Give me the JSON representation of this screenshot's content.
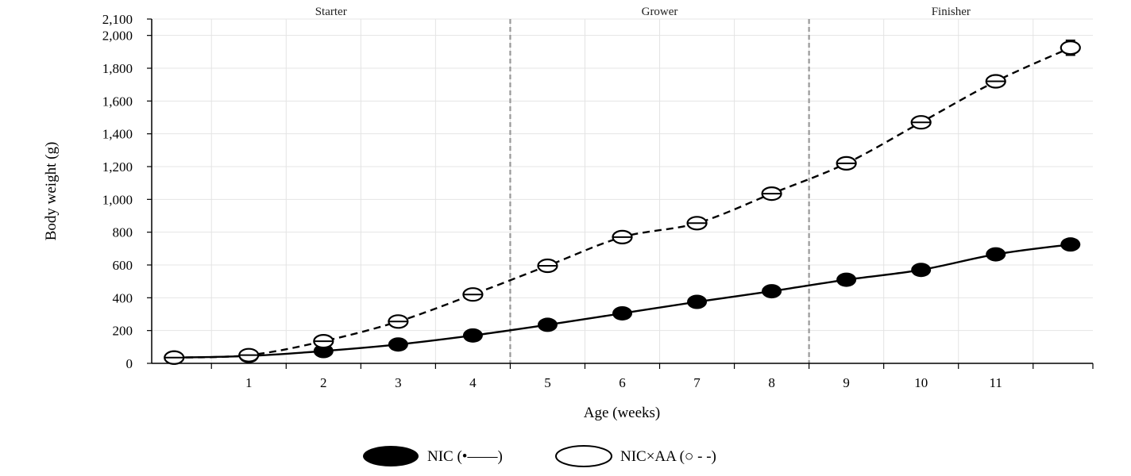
{
  "chart_data": {
    "type": "line",
    "xlabel": "Age (weeks)",
    "ylabel": "Body weight (g)",
    "xlim": [
      -0.3,
      12.3
    ],
    "ylim": [
      0,
      2100
    ],
    "x_ticks": [
      1,
      2,
      3,
      4,
      5,
      6,
      7,
      8,
      9,
      10,
      11
    ],
    "y_ticks": [
      0,
      200,
      400,
      600,
      800,
      1000,
      1200,
      1400,
      1600,
      1800,
      2000,
      2100
    ],
    "y_tick_labels": [
      "0",
      "200",
      "400",
      "600",
      "800",
      "1,000",
      "1,200",
      "1,400",
      "1,600",
      "1,800",
      "2,000",
      "2,100"
    ],
    "grid": true,
    "phases": [
      {
        "label": "Starter",
        "start": -0.3,
        "end": 4.5
      },
      {
        "label": "Grower",
        "start": 4.5,
        "end": 8.5
      },
      {
        "label": "Finisher",
        "start": 8.5,
        "end": 12.3
      }
    ],
    "phase_boundaries": [
      4.5,
      8.5
    ],
    "series": [
      {
        "name": "NIC (•——)",
        "marker": "filled-circle",
        "line": "solid",
        "x": [
          0,
          1,
          2,
          3,
          4,
          5,
          6,
          7,
          8,
          9,
          10,
          11,
          12
        ],
        "values": [
          35,
          45,
          75,
          115,
          170,
          235,
          305,
          375,
          440,
          510,
          570,
          665,
          725
        ],
        "errors": [
          0,
          0,
          0,
          0,
          0,
          0,
          0,
          0,
          0,
          0,
          0,
          0,
          0
        ]
      },
      {
        "name": "NIC×AA (○ - -)",
        "marker": "open-circle",
        "line": "dashed",
        "x": [
          0,
          1,
          2,
          3,
          4,
          5,
          6,
          7,
          8,
          9,
          10,
          11,
          12
        ],
        "values": [
          35,
          50,
          135,
          255,
          420,
          595,
          770,
          855,
          1035,
          1220,
          1470,
          1720,
          1925
        ],
        "errors": [
          0,
          0,
          0,
          0,
          0,
          0,
          0,
          0,
          0,
          0,
          0,
          0,
          45
        ]
      }
    ],
    "legend_position": "bottom-center"
  }
}
